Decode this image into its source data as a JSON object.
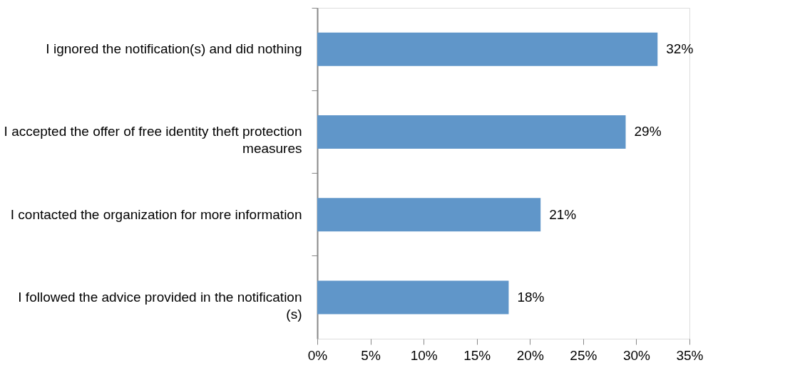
{
  "chart_data": {
    "type": "bar",
    "orientation": "horizontal",
    "categories": [
      "I ignored the notification(s) and did nothing",
      "I accepted the offer of free identity theft protection\nmeasures",
      "I contacted the organization for more information",
      "I followed the advice provided in the notification\n(s)"
    ],
    "values": [
      32,
      29,
      21,
      18
    ],
    "value_labels": [
      "32%",
      "29%",
      "21%",
      "18%"
    ],
    "color": "#6096c9",
    "xlim": [
      0,
      35
    ],
    "xticks": [
      {
        "value": 0,
        "label": "0%"
      },
      {
        "value": 5,
        "label": "5%"
      },
      {
        "value": 10,
        "label": "10%"
      },
      {
        "value": 15,
        "label": "15%"
      },
      {
        "value": 20,
        "label": "20%"
      },
      {
        "value": 25,
        "label": "25%"
      },
      {
        "value": 30,
        "label": "30%"
      },
      {
        "value": 35,
        "label": "35%"
      }
    ],
    "grid": false
  }
}
